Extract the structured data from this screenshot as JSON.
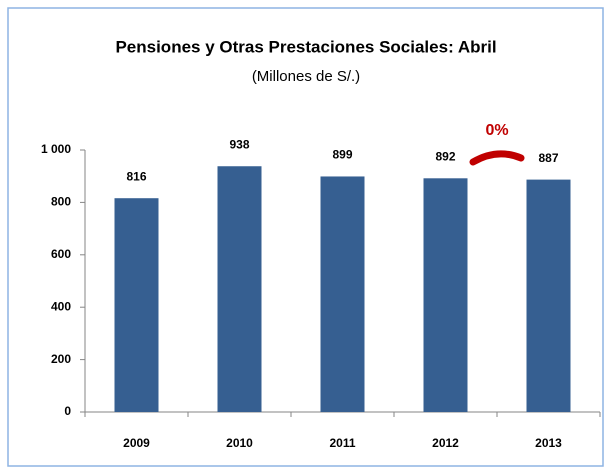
{
  "chart_data": {
    "type": "bar",
    "title": "Pensiones y Otras Prestaciones Sociales: Abril",
    "subtitle": "(Millones de S/.)",
    "categories": [
      "2009",
      "2010",
      "2011",
      "2012",
      "2013"
    ],
    "values": [
      816,
      938,
      899,
      892,
      887
    ],
    "color": "#365f91",
    "ylim": [
      0,
      1000
    ],
    "yticks": [
      0,
      200,
      400,
      600,
      800,
      {
        "value": 1000,
        "label": "1 000"
      }
    ],
    "grid": false,
    "annotation": "0%",
    "annotation_color": "#c00000"
  }
}
